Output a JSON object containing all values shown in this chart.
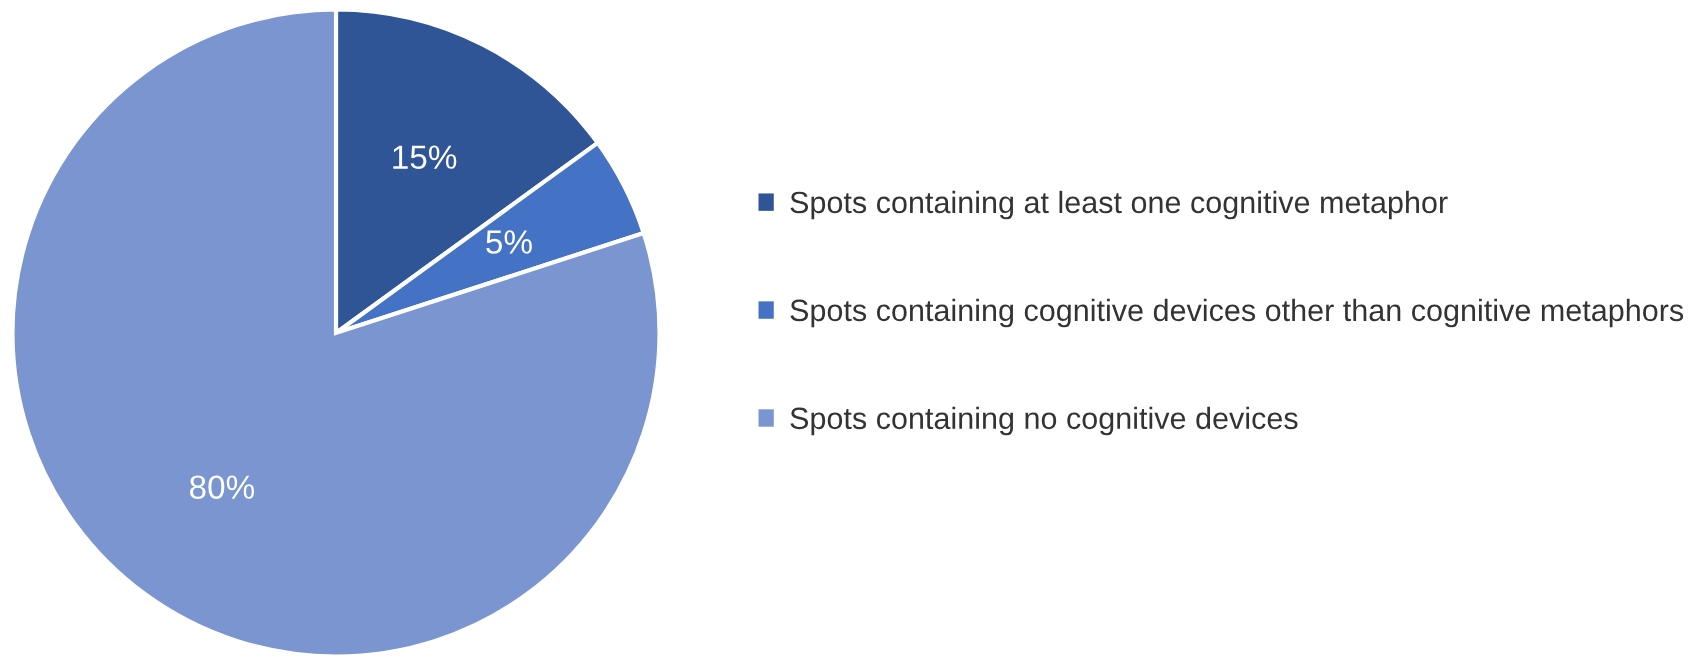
{
  "chart_data": {
    "type": "pie",
    "categories": [
      "Spots containing at least one cognitive metaphor",
      "Spots containing cognitive devices other than cognitive metaphors",
      "Spots containing no cognitive devices"
    ],
    "values": [
      15,
      5,
      80
    ],
    "colors": [
      "#2f5597",
      "#4472c4",
      "#7b95d0"
    ],
    "value_labels": [
      "15%",
      "5%",
      "80%"
    ],
    "legend": "right"
  }
}
